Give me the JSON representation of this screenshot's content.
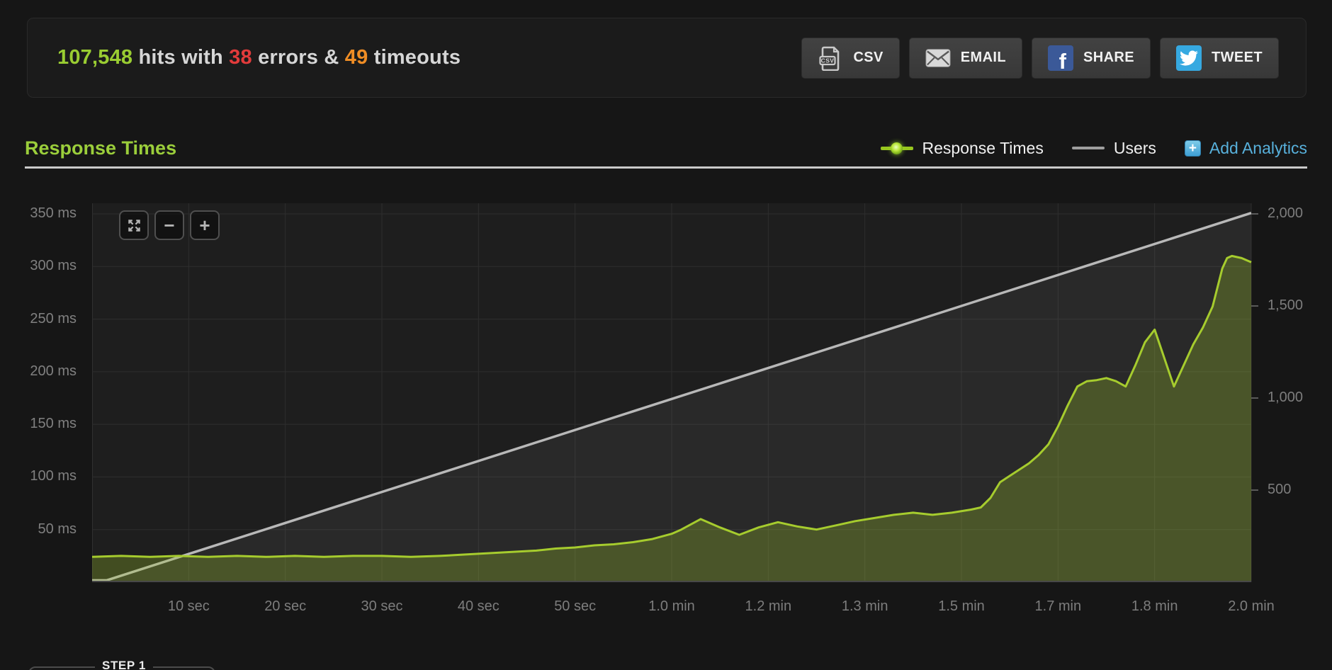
{
  "header": {
    "hits_value": "107,548",
    "hits_text": " hits with ",
    "errors_value": "38",
    "errors_text": " errors & ",
    "timeouts_value": "49",
    "timeouts_text": " timeouts",
    "buttons": [
      {
        "id": "csv",
        "label": "CSV"
      },
      {
        "id": "email",
        "label": "EMAIL"
      },
      {
        "id": "share",
        "label": "SHARE"
      },
      {
        "id": "tweet",
        "label": "TWEET"
      }
    ]
  },
  "section": {
    "title": "Response Times",
    "legend": [
      {
        "label": "Response Times"
      },
      {
        "label": "Users"
      }
    ],
    "add_analytics": "Add Analytics"
  },
  "chart_toolbar": {
    "zoom_out": "−",
    "zoom_in": "+"
  },
  "step": {
    "label": "STEP 1"
  },
  "colors": {
    "accent_green": "#9acd32",
    "error_red": "#e23b3b",
    "timeout_orange": "#ef8d25",
    "link_blue": "#58b1dc",
    "series_green": "#a6cc2e",
    "users_gray": "#b8b8b8",
    "facebook_blue": "#3b5998",
    "twitter_blue": "#36a9e1"
  },
  "chart_data": {
    "type": "line",
    "title": "Response Times",
    "grid": true,
    "legend_position": "top-right",
    "x_axis": {
      "min": 0,
      "max": 120,
      "unit": "sec",
      "ticks": [
        {
          "t": 10,
          "label": "10 sec"
        },
        {
          "t": 20,
          "label": "20 sec"
        },
        {
          "t": 30,
          "label": "30 sec"
        },
        {
          "t": 40,
          "label": "40 sec"
        },
        {
          "t": 50,
          "label": "50 sec"
        },
        {
          "t": 60,
          "label": "1.0 min"
        },
        {
          "t": 70,
          "label": "1.2 min"
        },
        {
          "t": 80,
          "label": "1.3 min"
        },
        {
          "t": 90,
          "label": "1.5 min"
        },
        {
          "t": 100,
          "label": "1.7 min"
        },
        {
          "t": 110,
          "label": "1.8 min"
        },
        {
          "t": 120,
          "label": "2.0 min"
        }
      ]
    },
    "y_left": {
      "min": 0,
      "max": 350,
      "unit": "ms",
      "ticks": [
        {
          "v": 350,
          "label": "350 ms"
        },
        {
          "v": 300,
          "label": "300 ms"
        },
        {
          "v": 250,
          "label": "250 ms"
        },
        {
          "v": 200,
          "label": "200 ms"
        },
        {
          "v": 150,
          "label": "150 ms"
        },
        {
          "v": 100,
          "label": "100 ms"
        },
        {
          "v": 50,
          "label": "50 ms"
        }
      ]
    },
    "y_right": {
      "min": 0,
      "max": 2000,
      "unit": "users",
      "ticks": [
        {
          "v": 2000,
          "label": "2,000"
        },
        {
          "v": 1500,
          "label": "1,500"
        },
        {
          "v": 1000,
          "label": "1,000"
        },
        {
          "v": 500,
          "label": "500"
        }
      ]
    },
    "series": [
      {
        "name": "Users",
        "axis": "right",
        "color": "#b8b8b8",
        "fill": "rgba(255,255,255,0.05)",
        "width": 3.5,
        "points": [
          [
            0,
            10
          ],
          [
            1.5,
            10
          ],
          [
            120,
            2005
          ]
        ]
      },
      {
        "name": "Response Times",
        "axis": "left",
        "color": "#a6cc2e",
        "fill": "rgba(163,200,44,0.28)",
        "width": 3,
        "points": [
          [
            0,
            24
          ],
          [
            3,
            25
          ],
          [
            6,
            24
          ],
          [
            9,
            25
          ],
          [
            12,
            24
          ],
          [
            15,
            25
          ],
          [
            18,
            24
          ],
          [
            21,
            25
          ],
          [
            24,
            24
          ],
          [
            27,
            25
          ],
          [
            30,
            25
          ],
          [
            33,
            24
          ],
          [
            36,
            25
          ],
          [
            38,
            26
          ],
          [
            40,
            27
          ],
          [
            42,
            28
          ],
          [
            44,
            29
          ],
          [
            46,
            30
          ],
          [
            48,
            32
          ],
          [
            50,
            33
          ],
          [
            52,
            35
          ],
          [
            54,
            36
          ],
          [
            56,
            38
          ],
          [
            58,
            41
          ],
          [
            60,
            46
          ],
          [
            61,
            50
          ],
          [
            63,
            60
          ],
          [
            65,
            52
          ],
          [
            67,
            45
          ],
          [
            69,
            52
          ],
          [
            71,
            57
          ],
          [
            73,
            53
          ],
          [
            75,
            50
          ],
          [
            77,
            54
          ],
          [
            79,
            58
          ],
          [
            81,
            61
          ],
          [
            83,
            64
          ],
          [
            85,
            66
          ],
          [
            87,
            64
          ],
          [
            89,
            66
          ],
          [
            91,
            69
          ],
          [
            92,
            71
          ],
          [
            93,
            80
          ],
          [
            94,
            95
          ],
          [
            95,
            101
          ],
          [
            96,
            107
          ],
          [
            97,
            113
          ],
          [
            98,
            121
          ],
          [
            99,
            131
          ],
          [
            100,
            148
          ],
          [
            101,
            168
          ],
          [
            102,
            186
          ],
          [
            103,
            191
          ],
          [
            104,
            192
          ],
          [
            105,
            194
          ],
          [
            106,
            191
          ],
          [
            107,
            186
          ],
          [
            108,
            206
          ],
          [
            109,
            228
          ],
          [
            110,
            240
          ],
          [
            111,
            213
          ],
          [
            112,
            186
          ],
          [
            113,
            206
          ],
          [
            114,
            226
          ],
          [
            115,
            242
          ],
          [
            116,
            262
          ],
          [
            117,
            298
          ],
          [
            117.5,
            308
          ],
          [
            118,
            310
          ],
          [
            119,
            308
          ],
          [
            120,
            304
          ]
        ]
      }
    ]
  }
}
